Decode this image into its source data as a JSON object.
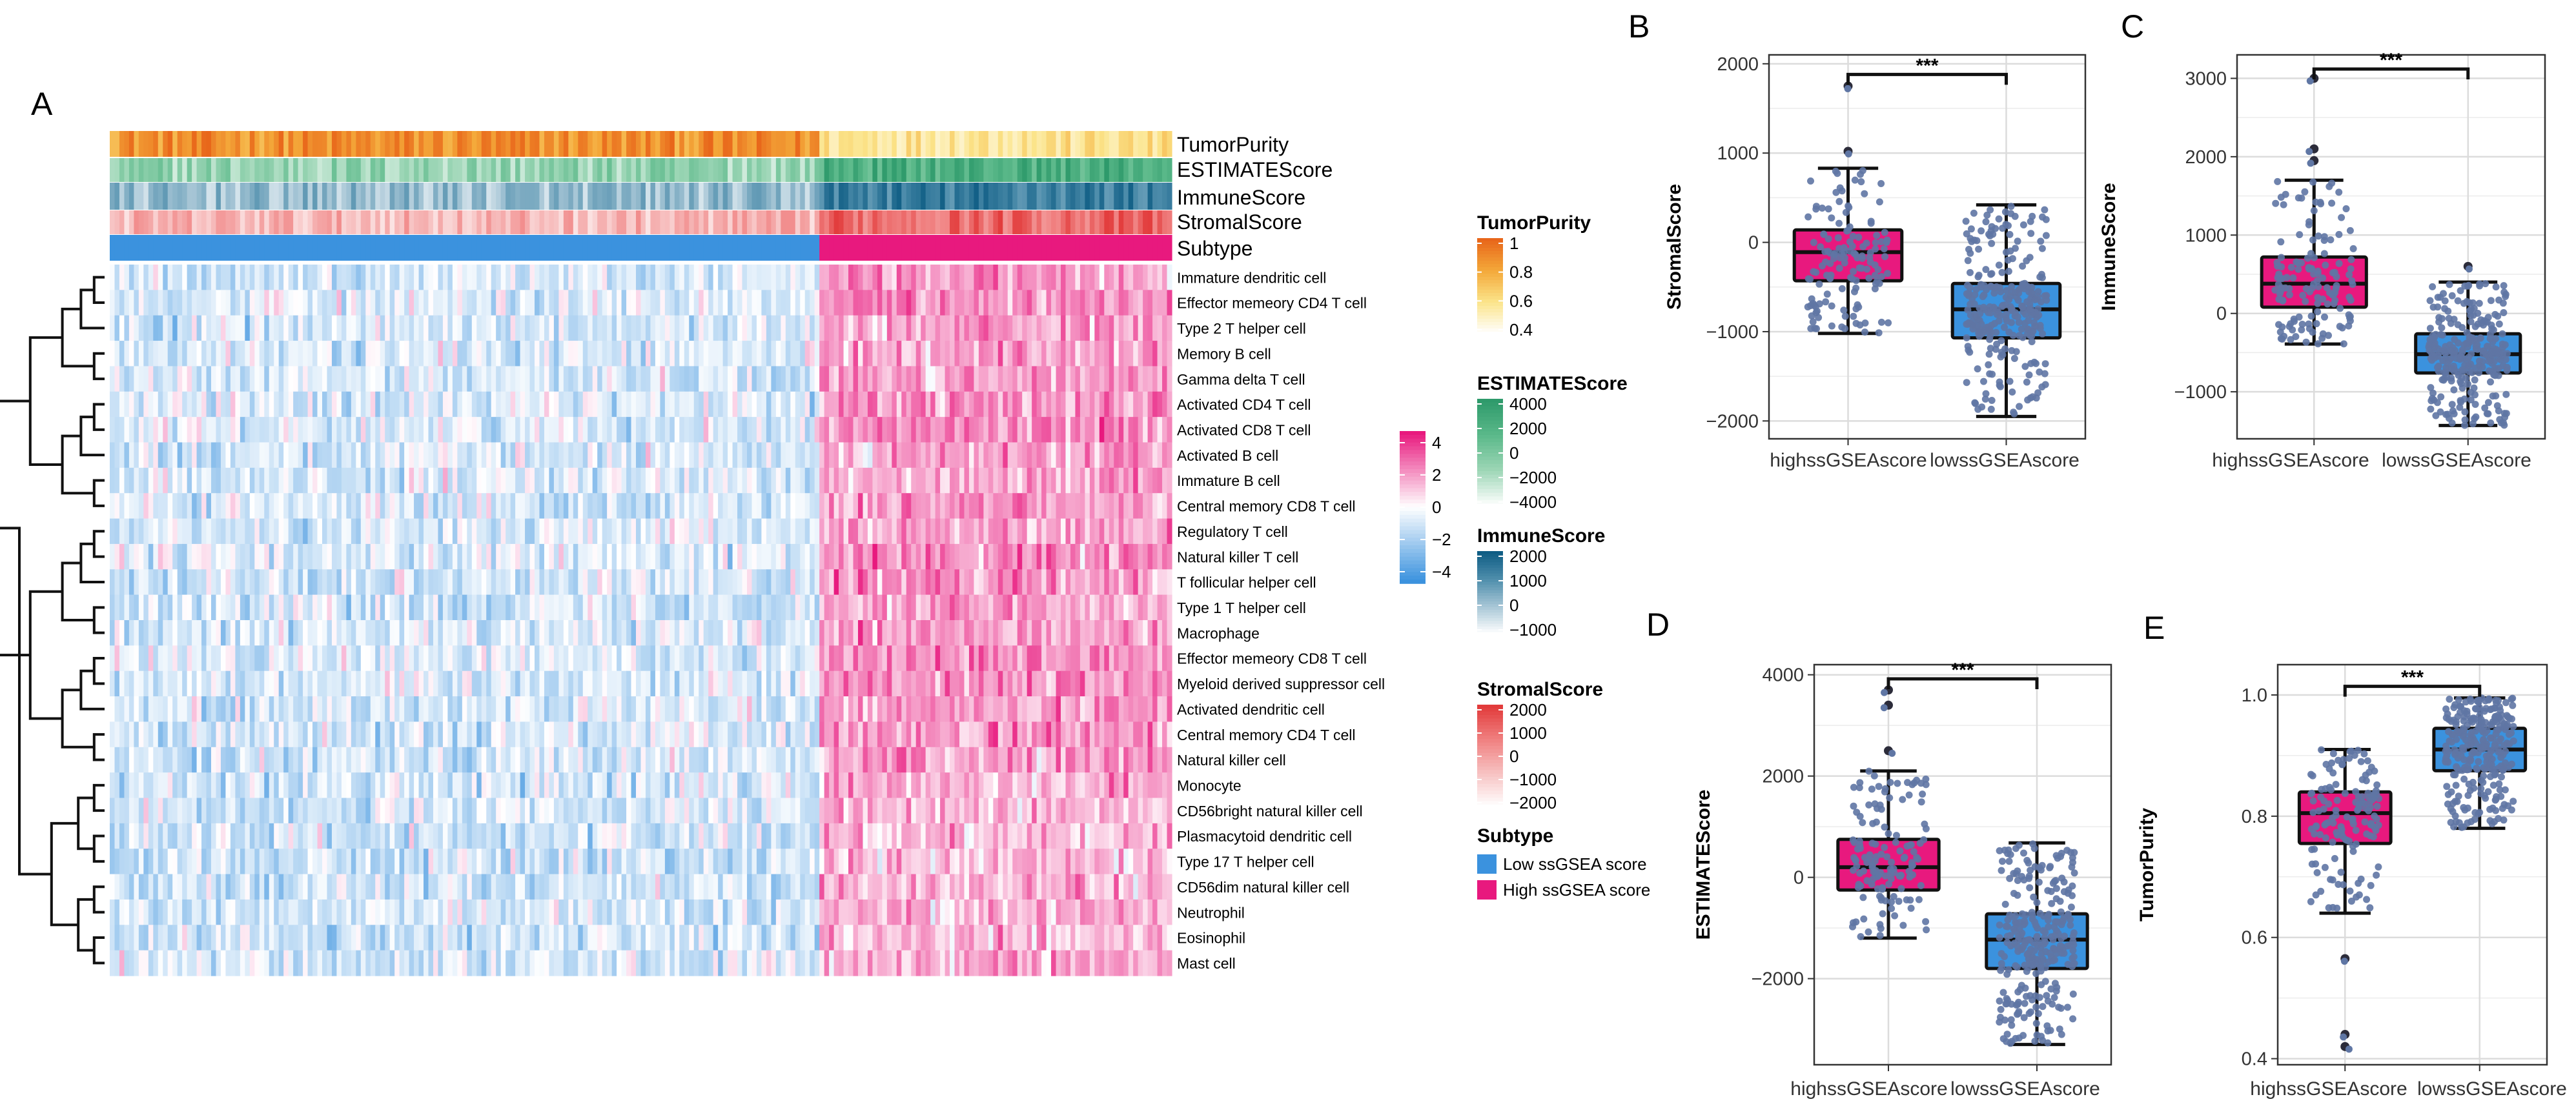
{
  "panel_labels": {
    "A": "A",
    "B": "B",
    "C": "C",
    "D": "D",
    "E": "E"
  },
  "chart_data": [
    {
      "panel": "A",
      "type": "heatmap",
      "title": "",
      "annotation_tracks": [
        "TumorPurity",
        "ESTIMATEScore",
        "ImmuneScore",
        "StromalScore",
        "Subtype"
      ],
      "rows": [
        "Immature dendritic cell",
        "Effector memeory CD4 T cell",
        "Type 2 T helper cell",
        "Memory B cell",
        "Gamma delta T cell",
        "Activated CD4 T cell",
        "Activated CD8 T cell",
        "Activated B cell",
        "Immature  B cell",
        "Central memory CD8 T cell",
        "Regulatory T cell",
        "Natural killer T cell",
        "T follicular helper cell",
        "Type 1 T helper cell",
        "Macrophage",
        "Effector memeory CD8 T cell",
        "Myeloid derived suppressor cell",
        "Activated dendritic cell",
        "Central memory CD4 T cell",
        "Natural killer cell",
        "Monocyte",
        "CD56bright natural killer cell",
        "Plasmacytoid dendritic cell",
        "Type 17 T helper cell",
        "CD56dim natural killer cell",
        "Neutrophil",
        "Eosinophil",
        "Mast cell"
      ],
      "groups": [
        {
          "name": "Low ssGSEA score",
          "fraction": 0.67,
          "mean_z": -0.8
        },
        {
          "name": "High ssGSEA score",
          "fraction": 0.33,
          "mean_z": 1.6
        }
      ],
      "color_scale": {
        "min": -4,
        "max": 4,
        "ticks": [
          "4",
          "2",
          "0",
          "−2",
          "−4"
        ],
        "low_color": "#3b92de",
        "mid_color": "#ffffff",
        "high_color": "#e8197e"
      },
      "legends": [
        {
          "title": "TumorPurity",
          "ticks": [
            "1",
            "0.8",
            "0.6",
            "0.4"
          ],
          "colors": [
            "#e8661a",
            "#f4a93a",
            "#fbe48a",
            "#ffffff"
          ]
        },
        {
          "title": "ESTIMATEScore",
          "ticks": [
            "4000",
            "2000",
            "0",
            "−2000",
            "−4000"
          ],
          "colors": [
            "#2e9a6b",
            "#5bb98a",
            "#9dd6b6",
            "#ffffff"
          ]
        },
        {
          "title": "ImmuneScore",
          "ticks": [
            "2000",
            "1000",
            "0",
            "−1000"
          ],
          "colors": [
            "#0f5d84",
            "#4f8eac",
            "#a7c6d6",
            "#ffffff"
          ]
        },
        {
          "title": "StromalScore",
          "ticks": [
            "2000",
            "1000",
            "0",
            "−1000",
            "−2000"
          ],
          "colors": [
            "#e23b3b",
            "#f08080",
            "#f7c1c1",
            "#ffffff"
          ]
        }
      ],
      "subtype_legend": {
        "title": "Subtype",
        "items": [
          {
            "label": "Low ssGSEA score",
            "color": "#3b92de"
          },
          {
            "label": "High ssGSEA score",
            "color": "#e8197e"
          }
        ]
      }
    },
    {
      "panel": "B",
      "type": "box",
      "ylabel": "StromalScore",
      "categories": [
        "highssGSEAscore",
        "lowssGSEAscore"
      ],
      "ylim": [
        -2200,
        2100
      ],
      "yticks": [
        2000,
        1000,
        0,
        -1000,
        -2000
      ],
      "ytick_labels": [
        "2000",
        "1000",
        "0",
        "−1000",
        "−2000"
      ],
      "boxes": [
        {
          "min": -1020,
          "q1": -430,
          "median": -110,
          "q3": 140,
          "max": 830,
          "outliers": [
            1020,
            1750
          ],
          "color": "#e8197e",
          "n_points": 140
        },
        {
          "min": -1950,
          "q1": -1070,
          "median": -750,
          "q3": -460,
          "max": 420,
          "outliers": [],
          "color": "#3b92de",
          "n_points": 280
        }
      ],
      "significance": "***"
    },
    {
      "panel": "C",
      "type": "box",
      "ylabel": "ImmuneScore",
      "categories": [
        "highssGSEAscore",
        "lowssGSEAscore"
      ],
      "ylim": [
        -1600,
        3300
      ],
      "yticks": [
        3000,
        2000,
        1000,
        0,
        -1000
      ],
      "ytick_labels": [
        "3000",
        "2000",
        "1000",
        "0",
        "−1000"
      ],
      "boxes": [
        {
          "min": -390,
          "q1": 80,
          "median": 380,
          "q3": 720,
          "max": 1700,
          "outliers": [
            1950,
            2100,
            3000
          ],
          "color": "#e8197e",
          "n_points": 140
        },
        {
          "min": -1430,
          "q1": -760,
          "median": -520,
          "q3": -260,
          "max": 400,
          "outliers": [
            600
          ],
          "color": "#3b92de",
          "n_points": 280
        }
      ],
      "significance": "***"
    },
    {
      "panel": "D",
      "type": "box",
      "ylabel": "ESTIMATEScore",
      "categories": [
        "highssGSEAscore",
        "lowssGSEAscore"
      ],
      "ylim": [
        -3700,
        4200
      ],
      "yticks": [
        4000,
        2000,
        0,
        -2000
      ],
      "ytick_labels": [
        "4000",
        "2000",
        "0",
        "−2000"
      ],
      "boxes": [
        {
          "min": -1200,
          "q1": -250,
          "median": 200,
          "q3": 750,
          "max": 2100,
          "outliers": [
            2500,
            3400,
            3700
          ],
          "color": "#e8197e",
          "n_points": 140
        },
        {
          "min": -3300,
          "q1": -1800,
          "median": -1230,
          "q3": -720,
          "max": 680,
          "outliers": [],
          "color": "#3b92de",
          "n_points": 280
        }
      ],
      "significance": "***"
    },
    {
      "panel": "E",
      "type": "box",
      "ylabel": "TumorPurity",
      "categories": [
        "highssGSEAscore",
        "lowssGSEAscore"
      ],
      "ylim": [
        0.39,
        1.05
      ],
      "yticks": [
        1.0,
        0.8,
        0.6,
        0.4
      ],
      "ytick_labels": [
        "1.0",
        "0.8",
        "0.6",
        "0.4"
      ],
      "boxes": [
        {
          "min": 0.64,
          "q1": 0.755,
          "median": 0.805,
          "q3": 0.84,
          "max": 0.91,
          "outliers": [
            0.565,
            0.44,
            0.42
          ],
          "color": "#e8197e",
          "n_points": 140
        },
        {
          "min": 0.78,
          "q1": 0.875,
          "median": 0.91,
          "q3": 0.945,
          "max": 0.995,
          "outliers": [],
          "color": "#3b92de",
          "n_points": 280
        }
      ],
      "significance": "***"
    }
  ]
}
